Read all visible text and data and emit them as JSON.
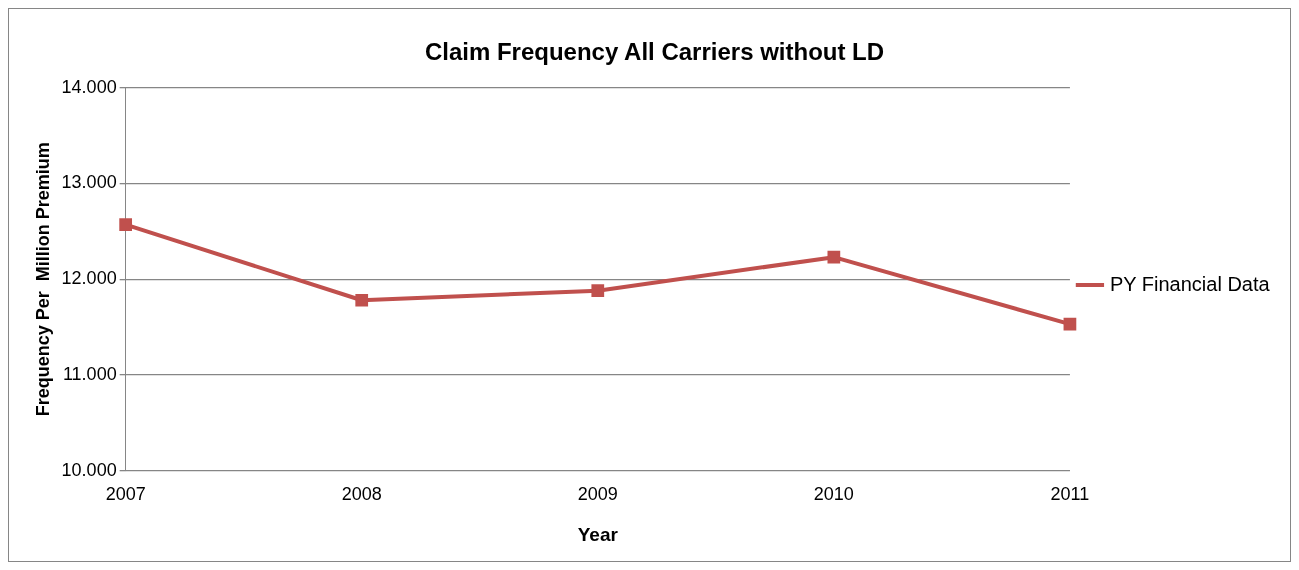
{
  "chart_data": {
    "type": "line",
    "title": "Claim Frequency All Carriers without LD",
    "xlabel": "Year",
    "ylabel": "Frequency Per  Million Premium",
    "categories": [
      "2007",
      "2008",
      "2009",
      "2010",
      "2011"
    ],
    "series": [
      {
        "name": "PY Financial Data",
        "color": "#c0504d",
        "values": [
          12.57,
          11.78,
          11.88,
          12.23,
          11.53
        ]
      }
    ],
    "ylim": [
      10,
      14
    ],
    "yticks": [
      {
        "value": 10,
        "label": "10.000"
      },
      {
        "value": 11,
        "label": "11.000"
      },
      {
        "value": 12,
        "label": "12.000"
      },
      {
        "value": 13,
        "label": "13.000"
      },
      {
        "value": 14,
        "label": "14.000"
      }
    ],
    "grid": "y",
    "legend": "right",
    "marker": "square",
    "line_style": "solid"
  }
}
